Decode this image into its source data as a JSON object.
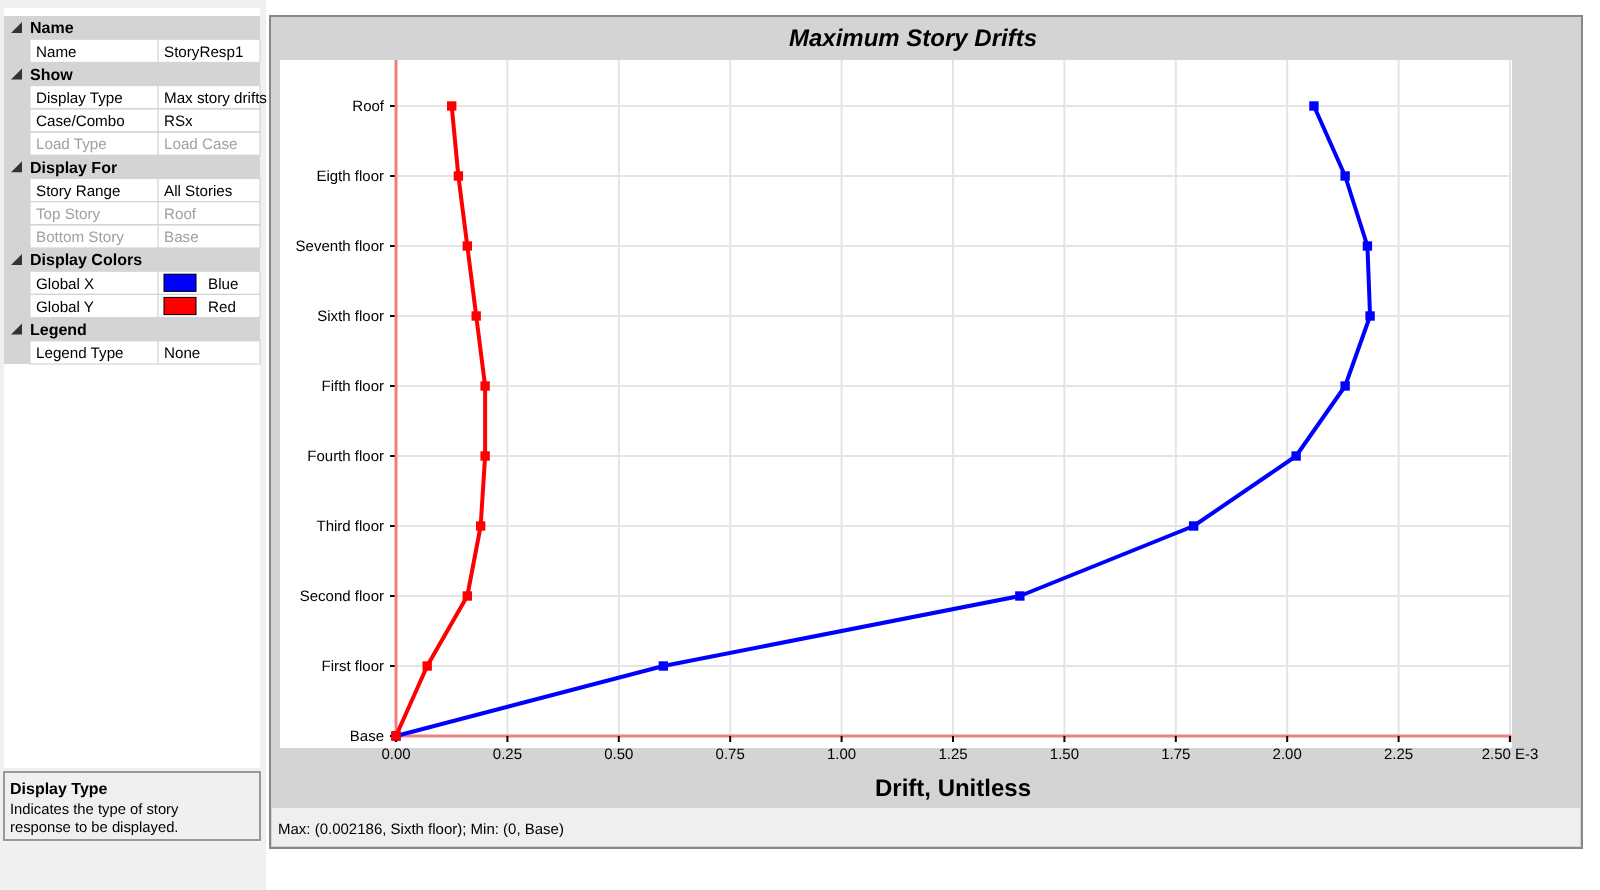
{
  "chart_data": [
    {
      "type": "other",
      "annotations": [
        "Name",
        "Name",
        "StoryResp1",
        "Show",
        "Display Type",
        "Max story drifts",
        "Case/Combo",
        "RSx",
        "Load Type",
        "Load Case",
        "Display For",
        "Story Range",
        "All Stories",
        "Top Story",
        "Roof",
        "Bottom Story",
        "Base",
        "Display Colors",
        "Global X",
        "Blue",
        "Global Y",
        "Red",
        "Legend",
        "Legend Type",
        "None",
        "Display Type",
        "Indicates the type of story response to be displayed."
      ]
    },
    {
      "type": "line",
      "orientation": "horizontal",
      "title": "Maximum Story Drifts",
      "xlabel": "Drift, Unitless",
      "annotations": [
        "Max: (0.002186, Sixth floor);   Min: (0, Base)"
      ],
      "categories": [
        "Roof",
        "Eigth floor",
        "Seventh floor",
        "Sixth floor",
        "Fifth floor",
        "Fourth floor",
        "Third floor",
        "Second floor",
        "First floor",
        "Base"
      ],
      "xlim": [
        0,
        2.5
      ],
      "xticks": [
        {
          "value": 0,
          "label": "0.00"
        },
        {
          "value": 0.25,
          "label": "0.25"
        },
        {
          "value": 0.5,
          "label": "0.50"
        },
        {
          "value": 0.75,
          "label": "0.75"
        },
        {
          "value": 1,
          "label": "1.00"
        },
        {
          "value": 1.25,
          "label": "1.25"
        },
        {
          "value": 1.5,
          "label": "1.50"
        },
        {
          "value": 1.75,
          "label": "1.75"
        },
        {
          "value": 2,
          "label": "2.00"
        },
        {
          "value": 2.25,
          "label": "2.25"
        },
        {
          "value": 2.5,
          "label": "2.50 E-3"
        }
      ],
      "grid": true,
      "marker": "square",
      "series": [
        {
          "color": "#0000ff",
          "values": [
            2.06,
            2.13,
            2.18,
            2.186,
            2.13,
            2.02,
            1.79,
            1.4,
            0.6,
            0
          ]
        },
        {
          "color": "#ff0000",
          "values": [
            0.125,
            0.14,
            0.16,
            0.18,
            0.2,
            0.2,
            0.19,
            0.16,
            0.07,
            0
          ]
        }
      ]
    }
  ]
}
